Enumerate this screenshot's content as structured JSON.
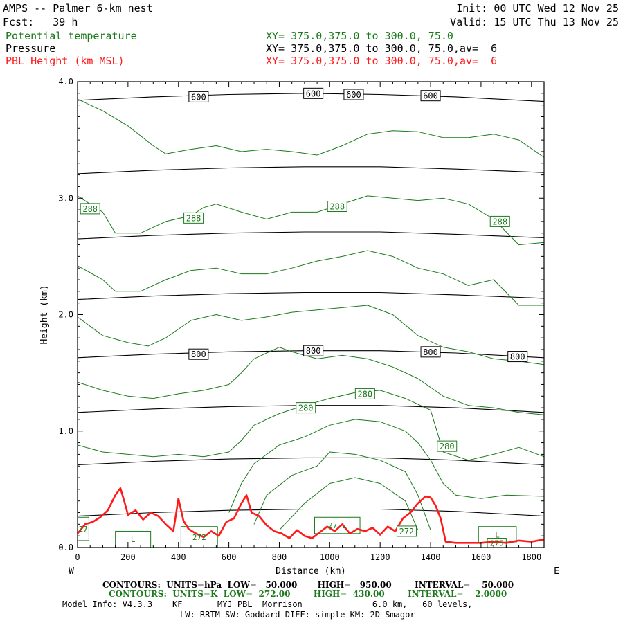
{
  "header": {
    "title": "AMPS -- Palmer 6-km nest",
    "fcst": "Fcst:   39 h",
    "init": "Init: 00 UTC Wed 12 Nov 25",
    "valid": "Valid: 15 UTC Thu 13 Nov 25",
    "fields": [
      {
        "name": "Potential temperature",
        "xy": "XY= 375.0,375.0 to 300.0, 75.0",
        "color": "#1a7a1a"
      },
      {
        "name": "Pressure",
        "xy": "XY= 375.0,375.0 to 300.0, 75.0,av=  6",
        "color": "#000000"
      },
      {
        "name": "PBL Height (km MSL)",
        "xy": "XY= 375.0,375.0 to 300.0, 75.0,av=  6",
        "color": "#ff1a1a"
      }
    ]
  },
  "footer": {
    "contours_p": "CONTOURS:  UNITS=hPa  LOW=   50.000       HIGH=   950.00        INTERVAL=    50.000",
    "contours_k": "CONTOURS:  UNITS=K  LOW=  272.00        HIGH=  430.00        INTERVAL=    2.0000",
    "model_info": "Model Info: V4.3.3    KF       MYJ PBL  Morrison              6.0 km,   60 levels,",
    "model_info2": "LW: RRTM SW: Goddard DIFF: simple KM: 2D Smagor"
  },
  "chart_data": {
    "type": "line",
    "title": "",
    "xlabel": "Distance (km)",
    "ylabel": "Height (km)",
    "xlim": [
      0,
      1850
    ],
    "ylim": [
      0,
      4.0
    ],
    "x_ticks": [
      0,
      200,
      400,
      600,
      800,
      1000,
      1200,
      1400,
      1600,
      1800
    ],
    "y_ticks": [
      0.0,
      1.0,
      2.0,
      3.0,
      4.0
    ],
    "y_tick_labels": [
      "0.0",
      "1.0",
      "2.0",
      "3.0",
      "4.0"
    ],
    "left_end_label": "W",
    "right_end_label": "E",
    "series": [
      {
        "kind": "pressure",
        "color": "#000000",
        "x": [
          0,
          300,
          600,
          900,
          1200,
          1500,
          1850
        ],
        "y": [
          3.84,
          3.87,
          3.89,
          3.9,
          3.89,
          3.87,
          3.83
        ]
      },
      {
        "kind": "pressure",
        "color": "#000000",
        "x": [
          0,
          300,
          600,
          900,
          1200,
          1500,
          1850
        ],
        "y": [
          3.21,
          3.24,
          3.26,
          3.27,
          3.27,
          3.25,
          3.22
        ]
      },
      {
        "kind": "pressure",
        "color": "#000000",
        "x": [
          0,
          300,
          600,
          900,
          1200,
          1500,
          1850
        ],
        "y": [
          2.65,
          2.68,
          2.7,
          2.71,
          2.71,
          2.69,
          2.66
        ]
      },
      {
        "kind": "pressure",
        "color": "#000000",
        "x": [
          0,
          300,
          600,
          900,
          1200,
          1500,
          1850
        ],
        "y": [
          2.13,
          2.16,
          2.18,
          2.19,
          2.19,
          2.17,
          2.14
        ]
      },
      {
        "kind": "pressure",
        "color": "#000000",
        "x": [
          0,
          300,
          600,
          900,
          1200,
          1500,
          1850
        ],
        "y": [
          1.63,
          1.66,
          1.68,
          1.69,
          1.69,
          1.67,
          1.63
        ]
      },
      {
        "kind": "pressure",
        "color": "#000000",
        "x": [
          0,
          300,
          600,
          900,
          1200,
          1500,
          1850
        ],
        "y": [
          1.16,
          1.19,
          1.21,
          1.22,
          1.22,
          1.2,
          1.16
        ]
      },
      {
        "kind": "pressure",
        "color": "#000000",
        "x": [
          0,
          300,
          600,
          900,
          1200,
          1500,
          1850
        ],
        "y": [
          0.71,
          0.74,
          0.76,
          0.77,
          0.77,
          0.75,
          0.71
        ]
      },
      {
        "kind": "pressure",
        "color": "#000000",
        "x": [
          0,
          300,
          600,
          900,
          1200,
          1500,
          1850
        ],
        "y": [
          0.27,
          0.3,
          0.32,
          0.33,
          0.33,
          0.31,
          0.27
        ]
      },
      {
        "kind": "theta",
        "color": "#1a7a1a",
        "x": [
          0,
          100,
          200,
          300,
          350,
          450,
          550,
          650,
          750,
          850,
          950,
          1050,
          1150,
          1250,
          1350,
          1450,
          1550,
          1650,
          1750,
          1850
        ],
        "y": [
          3.85,
          3.75,
          3.62,
          3.45,
          3.38,
          3.42,
          3.45,
          3.4,
          3.42,
          3.4,
          3.37,
          3.45,
          3.55,
          3.58,
          3.57,
          3.52,
          3.52,
          3.55,
          3.5,
          3.35
        ]
      },
      {
        "kind": "theta",
        "color": "#1a7a1a",
        "x": [
          0,
          100,
          150,
          250,
          350,
          450,
          500,
          550,
          650,
          750,
          850,
          950,
          1050,
          1150,
          1250,
          1350,
          1450,
          1550,
          1650,
          1750,
          1850
        ],
        "y": [
          3.02,
          2.88,
          2.7,
          2.7,
          2.8,
          2.85,
          2.92,
          2.95,
          2.88,
          2.82,
          2.88,
          2.88,
          2.95,
          3.02,
          3.0,
          2.98,
          3.0,
          2.95,
          2.82,
          2.6,
          2.62
        ]
      },
      {
        "kind": "theta",
        "color": "#1a7a1a",
        "x": [
          0,
          100,
          150,
          250,
          350,
          450,
          550,
          650,
          750,
          850,
          950,
          1050,
          1150,
          1250,
          1350,
          1450,
          1550,
          1650,
          1750,
          1850
        ],
        "y": [
          2.42,
          2.3,
          2.2,
          2.2,
          2.3,
          2.38,
          2.4,
          2.35,
          2.35,
          2.4,
          2.46,
          2.5,
          2.55,
          2.5,
          2.4,
          2.35,
          2.25,
          2.3,
          2.08,
          2.08
        ]
      },
      {
        "kind": "theta",
        "color": "#1a7a1a",
        "x": [
          0,
          100,
          200,
          280,
          350,
          450,
          550,
          650,
          750,
          850,
          950,
          1050,
          1150,
          1250,
          1350,
          1450,
          1550,
          1650,
          1750,
          1850
        ],
        "y": [
          1.98,
          1.82,
          1.76,
          1.73,
          1.8,
          1.95,
          2.0,
          1.95,
          1.98,
          2.02,
          2.04,
          2.06,
          2.08,
          2.0,
          1.82,
          1.72,
          1.68,
          1.62,
          1.6,
          1.57
        ]
      },
      {
        "kind": "theta",
        "color": "#1a7a1a",
        "x": [
          0,
          100,
          200,
          300,
          400,
          500,
          600,
          650,
          700,
          800,
          850,
          950,
          1050,
          1150,
          1250,
          1350,
          1450,
          1550,
          1650,
          1750,
          1850
        ],
        "y": [
          1.42,
          1.35,
          1.3,
          1.28,
          1.32,
          1.35,
          1.4,
          1.5,
          1.62,
          1.72,
          1.68,
          1.62,
          1.65,
          1.62,
          1.55,
          1.45,
          1.3,
          1.22,
          1.2,
          1.16,
          1.14
        ]
      },
      {
        "kind": "theta",
        "color": "#1a7a1a",
        "x": [
          0,
          100,
          200,
          300,
          400,
          500,
          600,
          650,
          700,
          800,
          900,
          1000,
          1100,
          1200,
          1300,
          1400,
          1450,
          1550,
          1650,
          1750,
          1850
        ],
        "y": [
          0.88,
          0.82,
          0.8,
          0.78,
          0.8,
          0.78,
          0.82,
          0.92,
          1.05,
          1.15,
          1.22,
          1.28,
          1.33,
          1.35,
          1.28,
          1.18,
          0.82,
          0.75,
          0.8,
          0.86,
          0.78
        ]
      },
      {
        "kind": "theta",
        "color": "#1a7a1a",
        "x": [
          600,
          650,
          700,
          800,
          900,
          1000,
          1100,
          1200,
          1300,
          1350,
          1400,
          1450,
          1500,
          1600,
          1700,
          1850
        ],
        "y": [
          0.3,
          0.55,
          0.72,
          0.88,
          0.95,
          1.05,
          1.1,
          1.08,
          1.0,
          0.9,
          0.75,
          0.55,
          0.45,
          0.42,
          0.45,
          0.44
        ]
      },
      {
        "kind": "theta",
        "color": "#1a7a1a",
        "x": [
          700,
          750,
          850,
          950,
          1000,
          1100,
          1200,
          1300,
          1350,
          1400
        ],
        "y": [
          0.2,
          0.45,
          0.62,
          0.7,
          0.82,
          0.8,
          0.75,
          0.65,
          0.45,
          0.15
        ]
      },
      {
        "kind": "theta",
        "color": "#1a7a1a",
        "x": [
          800,
          900,
          1000,
          1100,
          1200,
          1300,
          1350
        ],
        "y": [
          0.15,
          0.38,
          0.55,
          0.6,
          0.55,
          0.4,
          0.15
        ]
      },
      {
        "kind": "pbl",
        "name": "PBL Height (km MSL)",
        "color": "#ff1a1a",
        "x": [
          0,
          30,
          60,
          90,
          120,
          150,
          170,
          185,
          200,
          230,
          260,
          290,
          320,
          350,
          380,
          400,
          420,
          440,
          470,
          500,
          530,
          560,
          590,
          620,
          650,
          670,
          690,
          720,
          750,
          780,
          810,
          840,
          870,
          900,
          930,
          960,
          990,
          1020,
          1050,
          1080,
          1110,
          1140,
          1170,
          1200,
          1230,
          1260,
          1290,
          1320,
          1350,
          1380,
          1400,
          1420,
          1440,
          1460,
          1500,
          1550,
          1600,
          1650,
          1700,
          1750,
          1800,
          1850
        ],
        "y": [
          0.12,
          0.2,
          0.22,
          0.26,
          0.32,
          0.45,
          0.51,
          0.4,
          0.28,
          0.32,
          0.24,
          0.3,
          0.27,
          0.2,
          0.14,
          0.42,
          0.23,
          0.16,
          0.12,
          0.09,
          0.14,
          0.1,
          0.22,
          0.25,
          0.38,
          0.45,
          0.3,
          0.27,
          0.19,
          0.14,
          0.12,
          0.08,
          0.15,
          0.1,
          0.08,
          0.13,
          0.18,
          0.14,
          0.2,
          0.12,
          0.16,
          0.14,
          0.17,
          0.11,
          0.18,
          0.14,
          0.25,
          0.3,
          0.38,
          0.44,
          0.43,
          0.36,
          0.25,
          0.05,
          0.04,
          0.04,
          0.04,
          0.05,
          0.04,
          0.06,
          0.05,
          0.07
        ]
      }
    ],
    "pressure_labels": [
      {
        "text": "600",
        "x": 480,
        "y": 3.87
      },
      {
        "text": "600",
        "x": 935,
        "y": 3.9
      },
      {
        "text": "600",
        "x": 1095,
        "y": 3.89
      },
      {
        "text": "600",
        "x": 1400,
        "y": 3.88
      },
      {
        "text": "800",
        "x": 480,
        "y": 1.66
      },
      {
        "text": "800",
        "x": 935,
        "y": 1.69
      },
      {
        "text": "800",
        "x": 1400,
        "y": 1.68
      },
      {
        "text": "800",
        "x": 1745,
        "y": 1.64
      }
    ],
    "theta_labels": [
      {
        "text": "288",
        "x": 50,
        "y": 2.91
      },
      {
        "text": "288",
        "x": 460,
        "y": 2.83
      },
      {
        "text": "288",
        "x": 1030,
        "y": 2.93
      },
      {
        "text": "288",
        "x": 1675,
        "y": 2.8
      },
      {
        "text": "280",
        "x": 905,
        "y": 1.2
      },
      {
        "text": "280",
        "x": 1140,
        "y": 1.32
      },
      {
        "text": "280",
        "x": 1465,
        "y": 0.87
      },
      {
        "text": "272",
        "x": 1305,
        "y": 0.14
      }
    ],
    "terrain_boxes": [
      {
        "text": "L",
        "x0": 150,
        "x1": 290,
        "y0": 0.0,
        "y1": 0.14
      },
      {
        "text": "272",
        "x0": 410,
        "x1": 555,
        "y0": 0.0,
        "y1": 0.18
      },
      {
        "text": "27",
        "x0": 0,
        "x1": 45,
        "y0": 0.06,
        "y1": 0.26
      },
      {
        "text": "27 L",
        "x0": 940,
        "x1": 1120,
        "y0": 0.12,
        "y1": 0.26
      },
      {
        "text": "L",
        "x0": 1590,
        "x1": 1740,
        "y0": 0.04,
        "y1": 0.18
      },
      {
        "text": "275",
        "x0": 1625,
        "x1": 1700,
        "y0": 0.0,
        "y1": 0.08
      }
    ]
  }
}
